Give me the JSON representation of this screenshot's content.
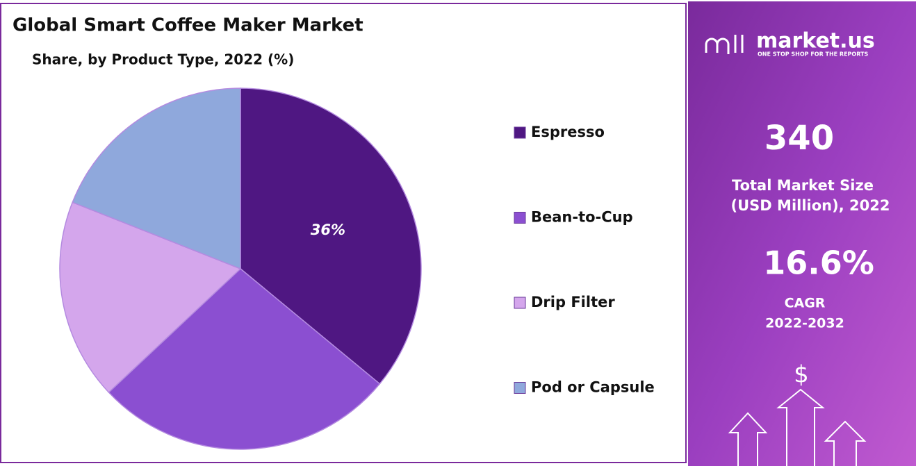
{
  "chart_data": {
    "type": "pie",
    "title": "Global Smart Coffee Maker Market",
    "subtitle": "Share, by Product Type, 2022 (%)",
    "categories": [
      "Espresso",
      "Bean-to-Cup",
      "Drip Filter",
      "Pod or Capsule"
    ],
    "values": [
      36,
      27,
      18,
      19
    ],
    "value_labels": [
      "36%",
      null,
      null,
      null
    ],
    "colors": [
      "#4f1782",
      "#8b4fd1",
      "#d4a6ec",
      "#8fa8dc"
    ],
    "legend": "right"
  },
  "side_panel": {
    "brand": "market.us",
    "tagline": "ONE STOP SHOP FOR THE REPORTS",
    "market_size": "340",
    "market_size_label_1": "Total Market Size",
    "market_size_label_2": "(USD Million), 2022",
    "cagr": "16.6%",
    "cagr_label": "CAGR",
    "cagr_period": "2022-2032",
    "currency_icon": "$"
  }
}
